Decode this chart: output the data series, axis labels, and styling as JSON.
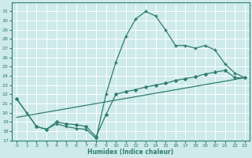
{
  "xlabel": "Humidex (Indice chaleur)",
  "bg_color": "#ceeaea",
  "grid_color": "#b8d8d8",
  "line_color": "#2e7d6e",
  "xlim": [
    -0.5,
    23.5
  ],
  "ylim": [
    17,
    32
  ],
  "xticks": [
    0,
    1,
    2,
    3,
    4,
    5,
    6,
    7,
    8,
    9,
    10,
    11,
    12,
    13,
    14,
    15,
    16,
    17,
    18,
    19,
    20,
    21,
    22,
    23
  ],
  "yticks": [
    17,
    18,
    19,
    20,
    21,
    22,
    23,
    24,
    25,
    26,
    27,
    28,
    29,
    30,
    31
  ],
  "series1_x": [
    0,
    1,
    2,
    3,
    4,
    5,
    6,
    7,
    8,
    9,
    10,
    11,
    12,
    13,
    14,
    15,
    16,
    17,
    18,
    19,
    20,
    21,
    22,
    23
  ],
  "series1_y": [
    21.5,
    20.0,
    18.5,
    18.2,
    18.8,
    18.5,
    18.3,
    18.2,
    17.2,
    22.0,
    25.5,
    28.3,
    30.2,
    31.0,
    30.5,
    29.0,
    27.3,
    27.3,
    27.0,
    27.3,
    26.8,
    25.3,
    24.3,
    23.8
  ],
  "series2_x": [
    0,
    2,
    3,
    4,
    5,
    6,
    7,
    8,
    9,
    10,
    11,
    12,
    13,
    14,
    15,
    16,
    17,
    18,
    19,
    20,
    21,
    22,
    23
  ],
  "series2_y": [
    21.5,
    18.5,
    18.2,
    19.0,
    18.8,
    18.7,
    18.5,
    17.4,
    19.8,
    22.0,
    22.3,
    22.5,
    22.8,
    23.0,
    23.2,
    23.5,
    23.7,
    23.9,
    24.2,
    24.4,
    24.6,
    23.8,
    23.8
  ],
  "series3_x": [
    0,
    23
  ],
  "series3_y": [
    19.5,
    23.8
  ]
}
